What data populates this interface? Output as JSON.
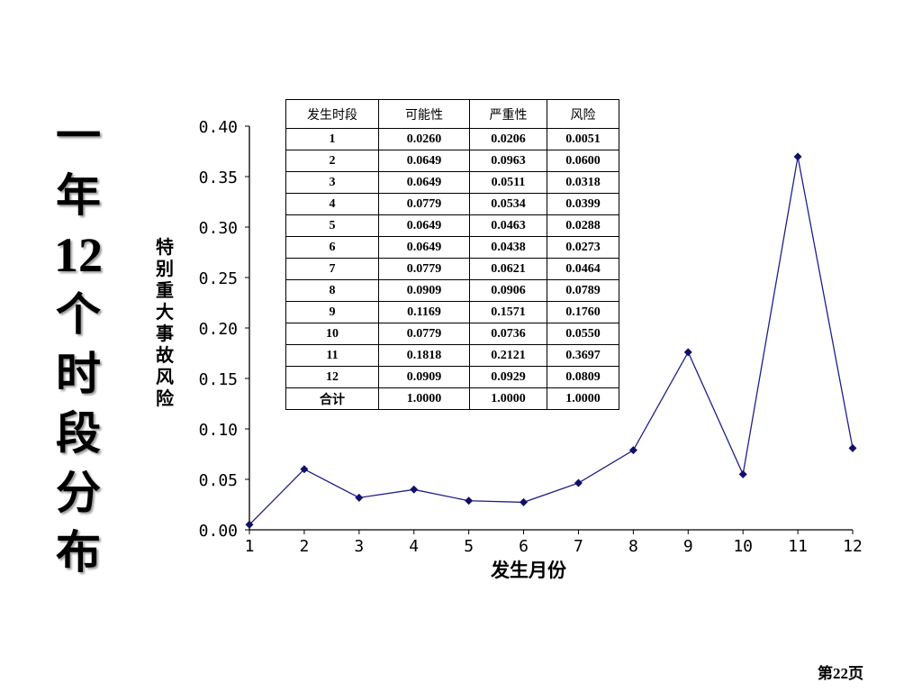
{
  "slide": {
    "title_chars": [
      "一",
      "年",
      "12",
      "个",
      "时",
      "段",
      "分",
      "布"
    ],
    "page_number": "第22页"
  },
  "chart_data": {
    "type": "line",
    "xlabel": "发生月份",
    "ylabel": "特别重大事故风险",
    "categories": [
      "1",
      "2",
      "3",
      "4",
      "5",
      "6",
      "7",
      "8",
      "9",
      "10",
      "11",
      "12"
    ],
    "series": [
      {
        "values": [
          0.0051,
          0.06,
          0.0318,
          0.0399,
          0.0288,
          0.0273,
          0.0464,
          0.0789,
          0.176,
          0.055,
          0.3697,
          0.0809
        ]
      }
    ],
    "ylim": [
      0,
      0.4
    ],
    "yticks": [
      "0.00",
      "0.05",
      "0.10",
      "0.15",
      "0.20",
      "0.25",
      "0.30",
      "0.35",
      "0.40"
    ],
    "grid": false,
    "line_color": "#1f1f8c",
    "marker_color": "#10106a"
  },
  "table": {
    "headers": [
      "发生时段",
      "可能性",
      "严重性",
      "风险"
    ],
    "rows": [
      [
        "1",
        "0.0260",
        "0.0206",
        "0.0051"
      ],
      [
        "2",
        "0.0649",
        "0.0963",
        "0.0600"
      ],
      [
        "3",
        "0.0649",
        "0.0511",
        "0.0318"
      ],
      [
        "4",
        "0.0779",
        "0.0534",
        "0.0399"
      ],
      [
        "5",
        "0.0649",
        "0.0463",
        "0.0288"
      ],
      [
        "6",
        "0.0649",
        "0.0438",
        "0.0273"
      ],
      [
        "7",
        "0.0779",
        "0.0621",
        "0.0464"
      ],
      [
        "8",
        "0.0909",
        "0.0906",
        "0.0789"
      ],
      [
        "9",
        "0.1169",
        "0.1571",
        "0.1760"
      ],
      [
        "10",
        "0.0779",
        "0.0736",
        "0.0550"
      ],
      [
        "11",
        "0.1818",
        "0.2121",
        "0.3697"
      ],
      [
        "12",
        "0.0909",
        "0.0929",
        "0.0809"
      ],
      [
        "合计",
        "1.0000",
        "1.0000",
        "1.0000"
      ]
    ]
  }
}
